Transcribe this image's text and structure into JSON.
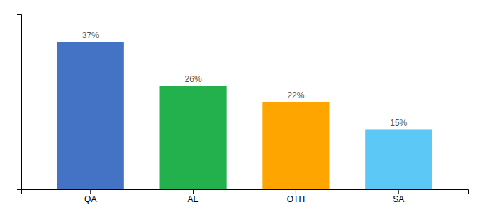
{
  "chart_data": {
    "type": "bar",
    "categories": [
      "QA",
      "AE",
      "OTH",
      "SA"
    ],
    "values": [
      37,
      26,
      22,
      15
    ],
    "value_labels": [
      "37%",
      "26%",
      "22%",
      "15%"
    ],
    "colors": [
      "#4472C4",
      "#22B14C",
      "#FFA500",
      "#5BC8F5"
    ],
    "ylim": [
      0,
      44
    ],
    "grid": false,
    "data_labels": true,
    "tick_labels": "x"
  }
}
